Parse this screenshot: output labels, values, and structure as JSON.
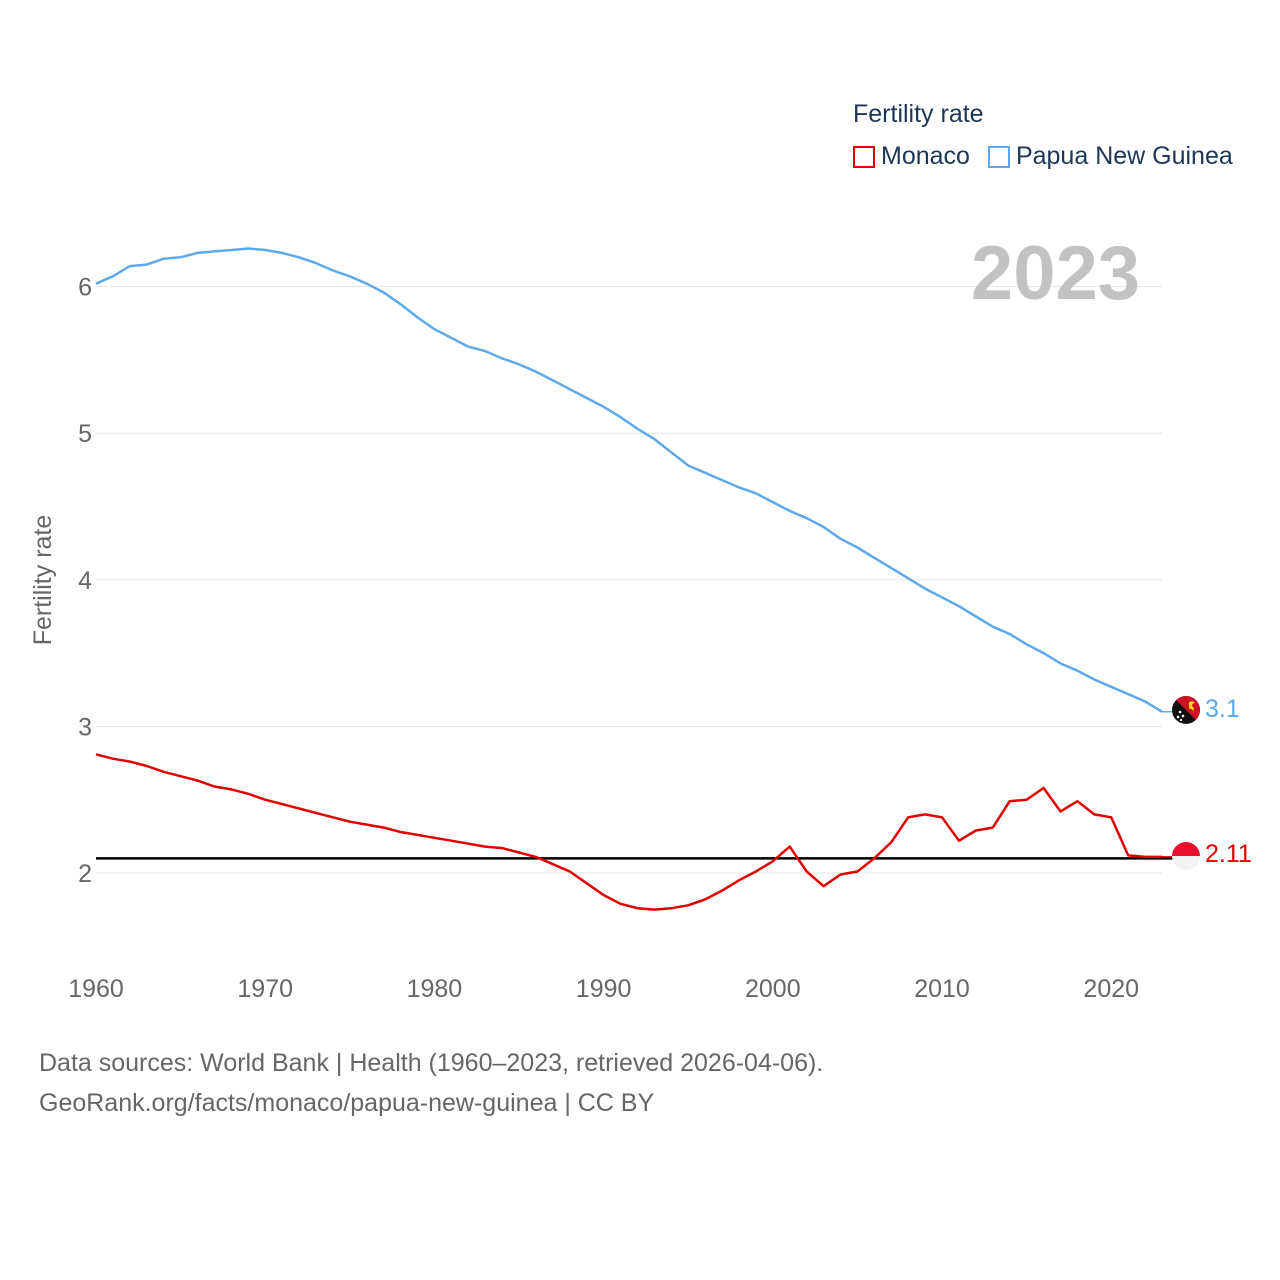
{
  "legend": {
    "title": "Fertility rate",
    "items": [
      {
        "label": "Monaco",
        "color": "#e00000"
      },
      {
        "label": "Papua New Guinea",
        "color": "#5da9e9"
      }
    ]
  },
  "year_watermark": "2023",
  "footer": {
    "line1": "Data sources: World Bank | Health (1960–2023, retrieved 2026-04-06).",
    "line2": "GeoRank.org/facts/monaco/papua-new-guinea | CC BY"
  },
  "chart_data": {
    "type": "line",
    "ylabel": "Fertility rate",
    "xlabel": "",
    "xlim": [
      1960,
      2023
    ],
    "ylim": [
      1.55,
      6.5
    ],
    "x_ticks": [
      1960,
      1970,
      1980,
      1990,
      2000,
      2010,
      2020
    ],
    "y_ticks": [
      2,
      3,
      4,
      5,
      6
    ],
    "reference_line": 2.1,
    "x": [
      1960,
      1961,
      1962,
      1963,
      1964,
      1965,
      1966,
      1967,
      1968,
      1969,
      1970,
      1971,
      1972,
      1973,
      1974,
      1975,
      1976,
      1977,
      1978,
      1979,
      1980,
      1981,
      1982,
      1983,
      1984,
      1985,
      1986,
      1987,
      1988,
      1989,
      1990,
      1991,
      1992,
      1993,
      1994,
      1995,
      1996,
      1997,
      1998,
      1999,
      2000,
      2001,
      2002,
      2003,
      2004,
      2005,
      2006,
      2007,
      2008,
      2009,
      2010,
      2011,
      2012,
      2013,
      2014,
      2015,
      2016,
      2017,
      2018,
      2019,
      2020,
      2021,
      2022,
      2023
    ],
    "series": [
      {
        "name": "Monaco",
        "color": "#e00000",
        "end_label": "2.11",
        "values": [
          2.81,
          2.78,
          2.76,
          2.73,
          2.69,
          2.66,
          2.63,
          2.59,
          2.57,
          2.54,
          2.5,
          2.47,
          2.44,
          2.41,
          2.38,
          2.35,
          2.33,
          2.31,
          2.28,
          2.26,
          2.24,
          2.22,
          2.2,
          2.18,
          2.17,
          2.14,
          2.11,
          2.06,
          2.01,
          1.93,
          1.85,
          1.79,
          1.76,
          1.75,
          1.76,
          1.78,
          1.82,
          1.88,
          1.95,
          2.01,
          2.08,
          2.18,
          2.01,
          1.91,
          1.99,
          2.01,
          2.1,
          2.21,
          2.38,
          2.4,
          2.38,
          2.22,
          2.29,
          2.31,
          2.49,
          2.5,
          2.58,
          2.42,
          2.49,
          2.4,
          2.38,
          2.12,
          2.11,
          2.11
        ]
      },
      {
        "name": "Papua New Guinea",
        "color": "#5da9e9",
        "end_label": "3.1",
        "values": [
          6.02,
          6.07,
          6.14,
          6.15,
          6.19,
          6.2,
          6.23,
          6.24,
          6.25,
          6.26,
          6.25,
          6.23,
          6.2,
          6.16,
          6.11,
          6.07,
          6.02,
          5.96,
          5.88,
          5.79,
          5.71,
          5.65,
          5.59,
          5.56,
          5.51,
          5.47,
          5.42,
          5.36,
          5.3,
          5.24,
          5.18,
          5.11,
          5.03,
          4.96,
          4.87,
          4.78,
          4.73,
          4.68,
          4.63,
          4.59,
          4.53,
          4.47,
          4.42,
          4.36,
          4.28,
          4.22,
          4.15,
          4.08,
          4.01,
          3.94,
          3.88,
          3.82,
          3.75,
          3.68,
          3.63,
          3.56,
          3.5,
          3.43,
          3.38,
          3.32,
          3.27,
          3.22,
          3.17,
          3.1
        ]
      }
    ]
  }
}
